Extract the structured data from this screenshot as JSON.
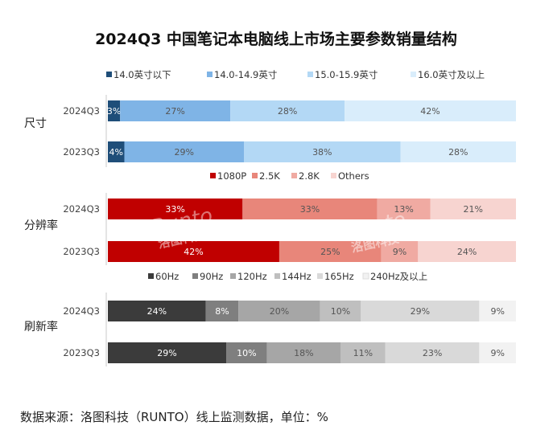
{
  "chart_data": {
    "type": "bar",
    "stacked": true,
    "orientation": "horizontal",
    "title": "2024Q3 中国笔记本电脑线上市场主要参数销量结构",
    "source_note": "数据来源：洛图科技（RUNTO）线上监测数据，单位：%",
    "watermark": {
      "brand": "Runto",
      "name": "洛图科技"
    },
    "grid": false,
    "groups": [
      {
        "label": "尺寸",
        "legend_position": "top",
        "categories": [
          "2024Q3",
          "2023Q3"
        ],
        "series": [
          {
            "name": "14.0英寸以下",
            "color": "#1f4e79",
            "values": [
              3,
              4
            ]
          },
          {
            "name": "14.0-14.9英寸",
            "color": "#7fb4e6",
            "values": [
              27,
              29
            ]
          },
          {
            "name": "15.0-15.9英寸",
            "color": "#b3d8f5",
            "values": [
              28,
              38
            ]
          },
          {
            "name": "16.0英寸及以上",
            "color": "#d9edfb",
            "values": [
              42,
              28
            ]
          }
        ]
      },
      {
        "label": "分辨率",
        "legend_position": "top",
        "categories": [
          "2024Q3",
          "2023Q3"
        ],
        "series": [
          {
            "name": "1080P",
            "color": "#c00000",
            "values": [
              33,
              42
            ]
          },
          {
            "name": "2.5K",
            "color": "#e8867a",
            "values": [
              33,
              25
            ]
          },
          {
            "name": "2.8K",
            "color": "#f0aaa2",
            "values": [
              13,
              9
            ]
          },
          {
            "name": "Others",
            "color": "#f7d4d0",
            "values": [
              21,
              24
            ]
          }
        ]
      },
      {
        "label": "刷新率",
        "legend_position": "top",
        "categories": [
          "2024Q3",
          "2023Q3"
        ],
        "series": [
          {
            "name": "60Hz",
            "color": "#3b3b3b",
            "values": [
              24,
              29
            ]
          },
          {
            "name": "90Hz",
            "color": "#7f7f7f",
            "values": [
              8,
              10
            ]
          },
          {
            "name": "120Hz",
            "color": "#a6a6a6",
            "values": [
              20,
              18
            ]
          },
          {
            "name": "144Hz",
            "color": "#bfbfbf",
            "values": [
              10,
              11
            ]
          },
          {
            "name": "165Hz",
            "color": "#d9d9d9",
            "values": [
              29,
              23
            ]
          },
          {
            "name": "240Hz及以上",
            "color": "#f2f2f2",
            "values": [
              9,
              9
            ]
          }
        ]
      }
    ]
  }
}
